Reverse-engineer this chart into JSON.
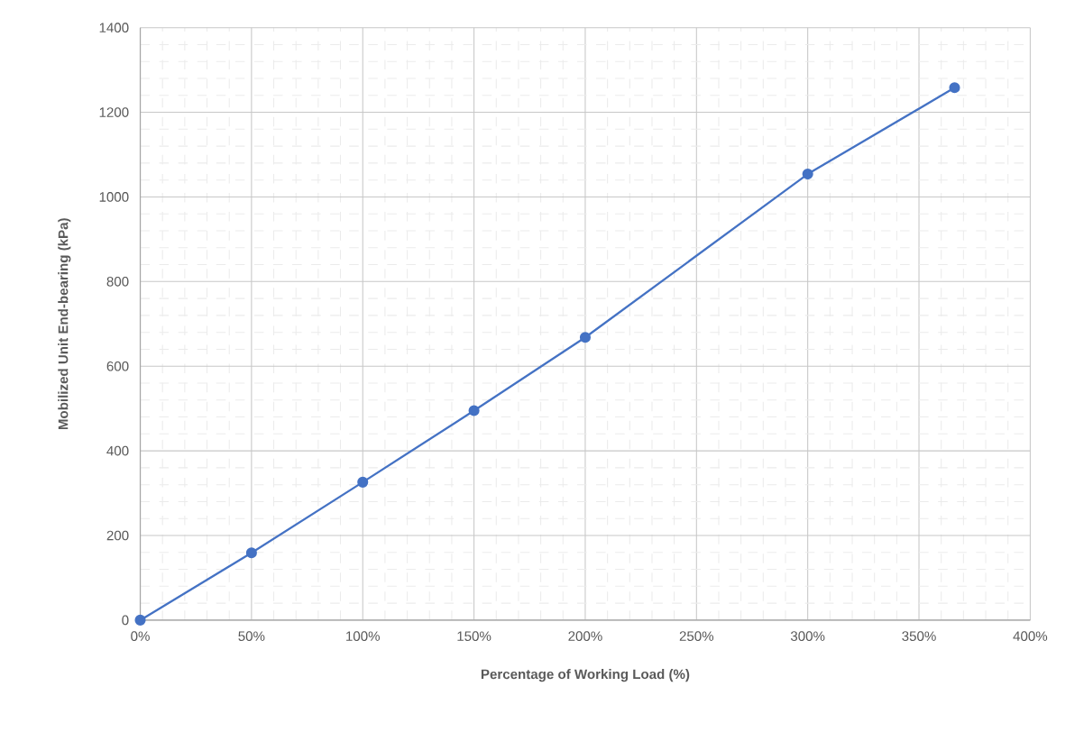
{
  "chart_data": {
    "type": "line",
    "xlabel": "Percentage of Working Load (%)",
    "ylabel": "Mobilized Unit End-bearing (kPa)",
    "x": [
      0,
      50,
      100,
      150,
      200,
      300,
      366
    ],
    "series": [
      {
        "color": "#4472c4",
        "values": [
          0,
          159,
          326,
          495,
          668,
          1054,
          1258
        ]
      }
    ],
    "xlim": [
      0,
      400
    ],
    "xticks": [
      {
        "value": 0,
        "label": "0%"
      },
      {
        "value": 50,
        "label": "50%"
      },
      {
        "value": 100,
        "label": "100%"
      },
      {
        "value": 150,
        "label": "150%"
      },
      {
        "value": 200,
        "label": "200%"
      },
      {
        "value": 250,
        "label": "250%"
      },
      {
        "value": 300,
        "label": "300%"
      },
      {
        "value": 350,
        "label": "350%"
      },
      {
        "value": 400,
        "label": "400%"
      }
    ],
    "ylim": [
      0,
      1400
    ],
    "yticks": [
      0,
      200,
      400,
      600,
      800,
      1000,
      1200,
      1400
    ],
    "grid": true,
    "marker": "circle",
    "line_style": "solid"
  }
}
